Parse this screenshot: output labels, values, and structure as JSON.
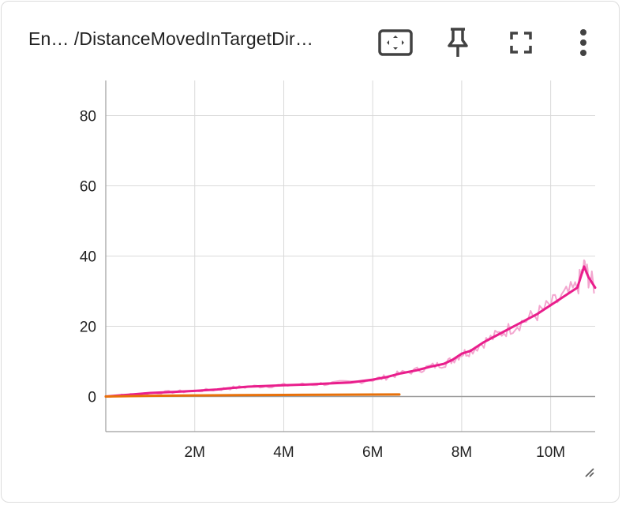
{
  "card": {
    "title": "En… /DistanceMovedInTargetDir…",
    "toolbar": {
      "fit_icon": "fit-domain-icon",
      "pin_icon": "pin-icon",
      "fullscreen_icon": "fullscreen-icon",
      "menu_icon": "more-vert-icon"
    }
  },
  "chart_data": {
    "type": "line",
    "x_ticks": [
      {
        "value": 2000000,
        "label": "2M"
      },
      {
        "value": 4000000,
        "label": "4M"
      },
      {
        "value": 6000000,
        "label": "6M"
      },
      {
        "value": 8000000,
        "label": "8M"
      },
      {
        "value": 10000000,
        "label": "10M"
      }
    ],
    "y_ticks": [
      0,
      20,
      40,
      60,
      80
    ],
    "xlim": [
      0,
      11000000
    ],
    "ylim": [
      -10,
      90
    ],
    "grid": true,
    "colors": {
      "pink": "#e91e8c",
      "pink_raw": "#f3a6cf",
      "orange": "#e8710a",
      "grid": "#d9d9d9",
      "zero": "#9e9e9e"
    },
    "series": [
      {
        "color": "pink",
        "x": [
          0,
          300000,
          600000,
          1000000,
          1500000,
          2000000,
          2500000,
          2800000,
          3200000,
          3600000,
          4000000,
          4500000,
          5000000,
          5500000,
          6000000,
          6300000,
          6600000,
          7000000,
          7300000,
          7600000,
          7800000,
          8000000,
          8200000,
          8500000,
          8800000,
          9100000,
          9400000,
          9700000,
          10000000,
          10300000,
          10600000,
          10750000,
          10850000,
          11000000
        ],
        "y": [
          0,
          0.3,
          0.6,
          1.0,
          1.3,
          1.6,
          2.0,
          2.4,
          2.8,
          3.0,
          3.2,
          3.4,
          3.7,
          4.0,
          4.8,
          5.5,
          6.5,
          7.5,
          8.5,
          9.3,
          10.5,
          12.2,
          13.0,
          15.5,
          17.5,
          19.5,
          21.5,
          23.5,
          26.0,
          28.5,
          31.0,
          37.0,
          34.0,
          31.0
        ]
      },
      {
        "color": "orange",
        "x": [
          0,
          1000000,
          2000000,
          3000000,
          4000000,
          5000000,
          6000000,
          6600000
        ],
        "y": [
          0,
          0.2,
          0.3,
          0.4,
          0.45,
          0.5,
          0.55,
          0.6
        ]
      }
    ]
  }
}
